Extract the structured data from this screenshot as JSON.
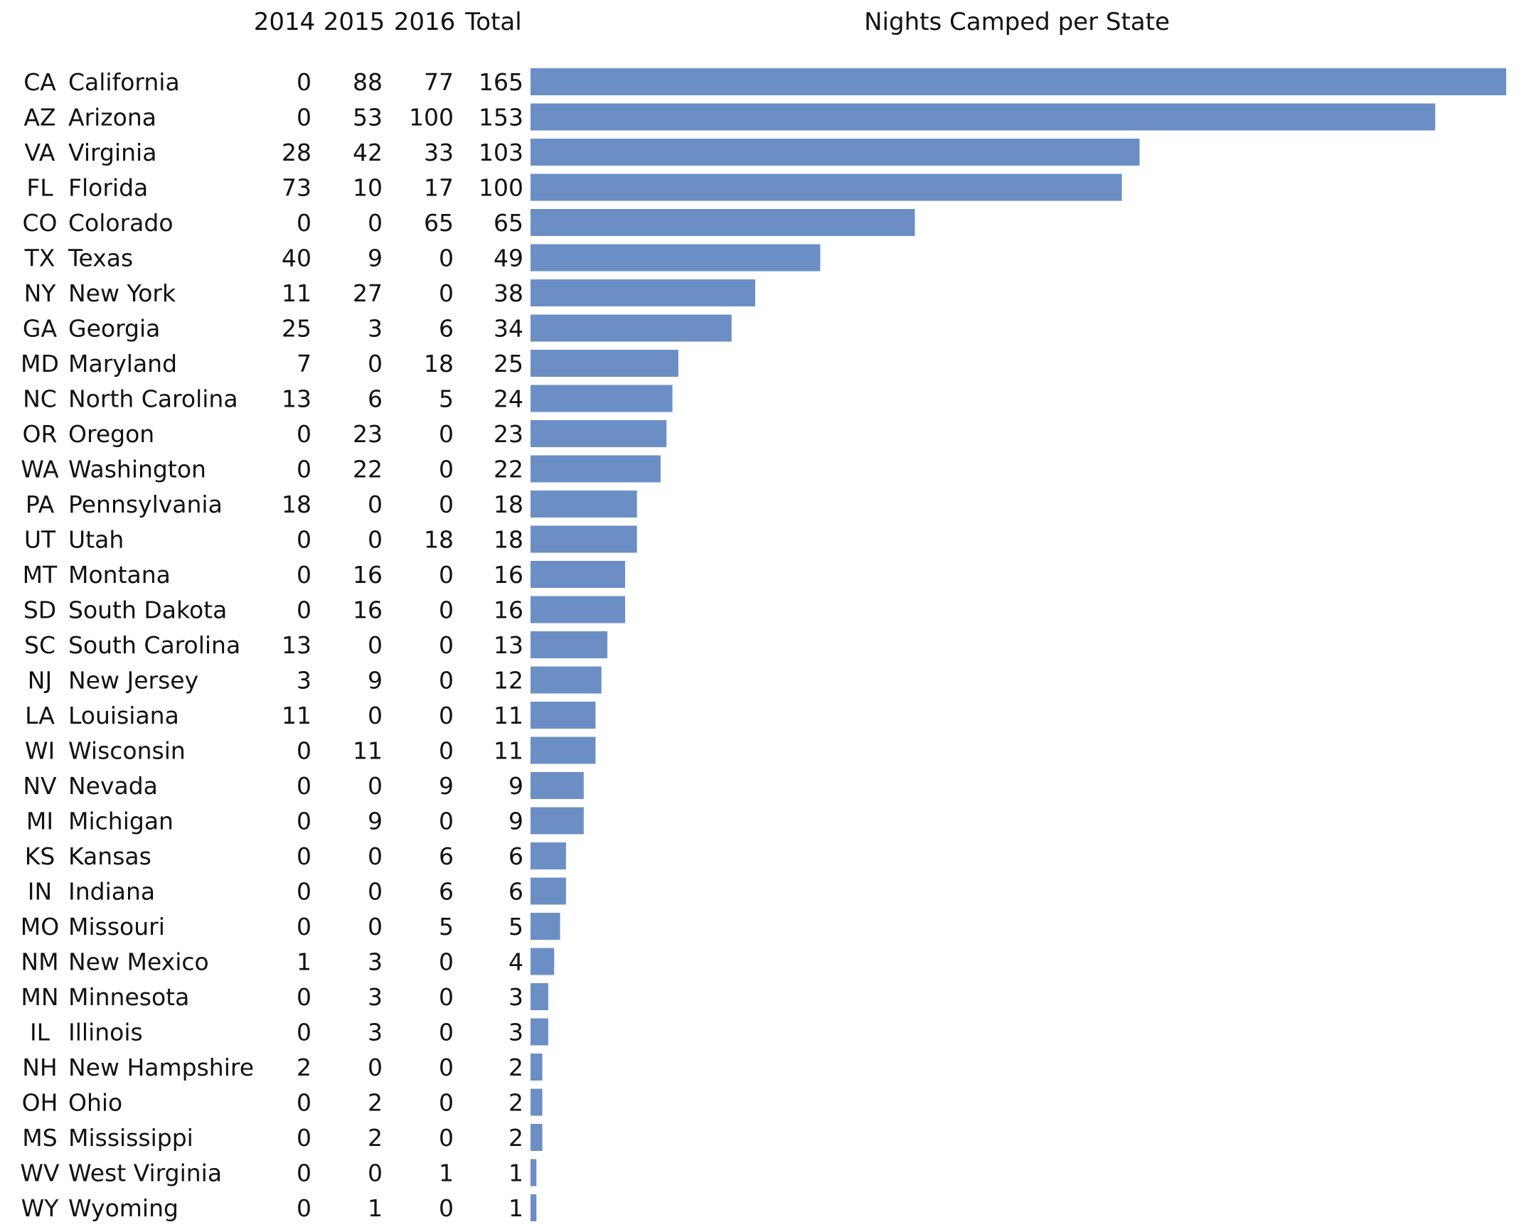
{
  "chart_data": {
    "type": "bar",
    "title": "Nights Camped per State",
    "columns": [
      "2014",
      "2015",
      "2016",
      "Total"
    ],
    "bar_color": "#6b8fc4",
    "rows": [
      {
        "abbr": "CA",
        "state": "California",
        "y2014": 0,
        "y2015": 88,
        "y2016": 77,
        "total": 165
      },
      {
        "abbr": "AZ",
        "state": "Arizona",
        "y2014": 0,
        "y2015": 53,
        "y2016": 100,
        "total": 153
      },
      {
        "abbr": "VA",
        "state": "Virginia",
        "y2014": 28,
        "y2015": 42,
        "y2016": 33,
        "total": 103
      },
      {
        "abbr": "FL",
        "state": "Florida",
        "y2014": 73,
        "y2015": 10,
        "y2016": 17,
        "total": 100
      },
      {
        "abbr": "CO",
        "state": "Colorado",
        "y2014": 0,
        "y2015": 0,
        "y2016": 65,
        "total": 65
      },
      {
        "abbr": "TX",
        "state": "Texas",
        "y2014": 40,
        "y2015": 9,
        "y2016": 0,
        "total": 49
      },
      {
        "abbr": "NY",
        "state": "New York",
        "y2014": 11,
        "y2015": 27,
        "y2016": 0,
        "total": 38
      },
      {
        "abbr": "GA",
        "state": "Georgia",
        "y2014": 25,
        "y2015": 3,
        "y2016": 6,
        "total": 34
      },
      {
        "abbr": "MD",
        "state": "Maryland",
        "y2014": 7,
        "y2015": 0,
        "y2016": 18,
        "total": 25
      },
      {
        "abbr": "NC",
        "state": "North Carolina",
        "y2014": 13,
        "y2015": 6,
        "y2016": 5,
        "total": 24
      },
      {
        "abbr": "OR",
        "state": "Oregon",
        "y2014": 0,
        "y2015": 23,
        "y2016": 0,
        "total": 23
      },
      {
        "abbr": "WA",
        "state": "Washington",
        "y2014": 0,
        "y2015": 22,
        "y2016": 0,
        "total": 22
      },
      {
        "abbr": "PA",
        "state": "Pennsylvania",
        "y2014": 18,
        "y2015": 0,
        "y2016": 0,
        "total": 18
      },
      {
        "abbr": "UT",
        "state": "Utah",
        "y2014": 0,
        "y2015": 0,
        "y2016": 18,
        "total": 18
      },
      {
        "abbr": "MT",
        "state": "Montana",
        "y2014": 0,
        "y2015": 16,
        "y2016": 0,
        "total": 16
      },
      {
        "abbr": "SD",
        "state": "South Dakota",
        "y2014": 0,
        "y2015": 16,
        "y2016": 0,
        "total": 16
      },
      {
        "abbr": "SC",
        "state": "South Carolina",
        "y2014": 13,
        "y2015": 0,
        "y2016": 0,
        "total": 13
      },
      {
        "abbr": "NJ",
        "state": "New Jersey",
        "y2014": 3,
        "y2015": 9,
        "y2016": 0,
        "total": 12
      },
      {
        "abbr": "LA",
        "state": "Louisiana",
        "y2014": 11,
        "y2015": 0,
        "y2016": 0,
        "total": 11
      },
      {
        "abbr": "WI",
        "state": "Wisconsin",
        "y2014": 0,
        "y2015": 11,
        "y2016": 0,
        "total": 11
      },
      {
        "abbr": "NV",
        "state": "Nevada",
        "y2014": 0,
        "y2015": 0,
        "y2016": 9,
        "total": 9
      },
      {
        "abbr": "MI",
        "state": "Michigan",
        "y2014": 0,
        "y2015": 9,
        "y2016": 0,
        "total": 9
      },
      {
        "abbr": "KS",
        "state": "Kansas",
        "y2014": 0,
        "y2015": 0,
        "y2016": 6,
        "total": 6
      },
      {
        "abbr": "IN",
        "state": "Indiana",
        "y2014": 0,
        "y2015": 0,
        "y2016": 6,
        "total": 6
      },
      {
        "abbr": "MO",
        "state": "Missouri",
        "y2014": 0,
        "y2015": 0,
        "y2016": 5,
        "total": 5
      },
      {
        "abbr": "NM",
        "state": "New Mexico",
        "y2014": 1,
        "y2015": 3,
        "y2016": 0,
        "total": 4
      },
      {
        "abbr": "MN",
        "state": "Minnesota",
        "y2014": 0,
        "y2015": 3,
        "y2016": 0,
        "total": 3
      },
      {
        "abbr": "IL",
        "state": "Illinois",
        "y2014": 0,
        "y2015": 3,
        "y2016": 0,
        "total": 3
      },
      {
        "abbr": "NH",
        "state": "New Hampshire",
        "y2014": 2,
        "y2015": 0,
        "y2016": 0,
        "total": 2
      },
      {
        "abbr": "OH",
        "state": "Ohio",
        "y2014": 0,
        "y2015": 2,
        "y2016": 0,
        "total": 2
      },
      {
        "abbr": "MS",
        "state": "Mississippi",
        "y2014": 0,
        "y2015": 2,
        "y2016": 0,
        "total": 2
      },
      {
        "abbr": "WV",
        "state": "West Virginia",
        "y2014": 0,
        "y2015": 0,
        "y2016": 1,
        "total": 1
      },
      {
        "abbr": "WY",
        "state": "Wyoming",
        "y2014": 0,
        "y2015": 1,
        "y2016": 0,
        "total": 1
      }
    ]
  }
}
